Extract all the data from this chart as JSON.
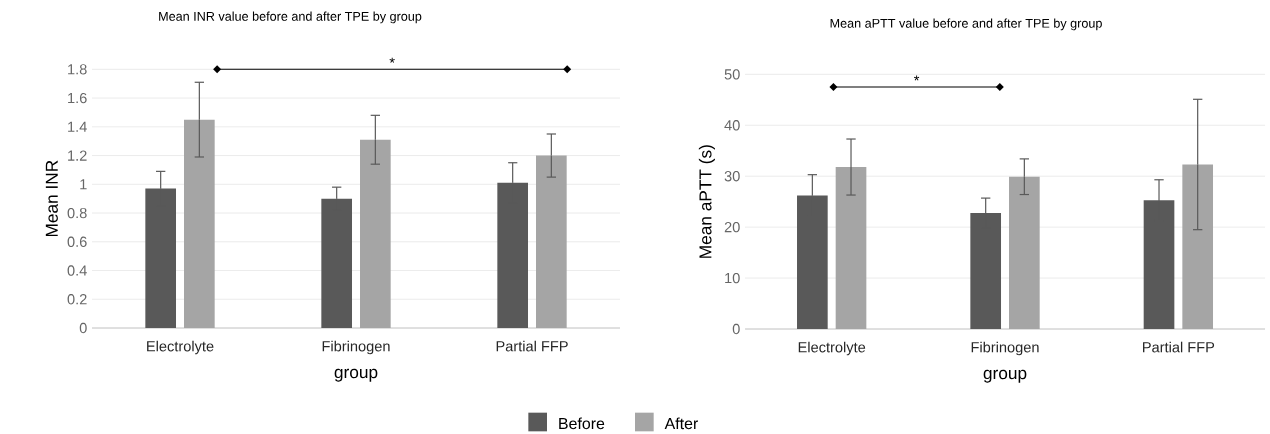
{
  "chart_data": [
    {
      "type": "bar",
      "title": "Mean INR value before and after TPE by group",
      "xlabel": "group",
      "ylabel": "Mean INR",
      "categories": [
        "Electrolyte",
        "Fibrinogen",
        "Partial FFP"
      ],
      "series": [
        {
          "name": "Before",
          "color": "#595959",
          "values": [
            0.97,
            0.9,
            1.01
          ],
          "errors": [
            0.12,
            0.08,
            0.14
          ]
        },
        {
          "name": "After",
          "color": "#a5a5a5",
          "values": [
            1.45,
            1.31,
            1.2
          ],
          "errors": [
            0.26,
            0.17,
            0.15
          ]
        }
      ],
      "ylim": [
        0,
        1.8
      ],
      "yticks": [
        0,
        0.2,
        0.4,
        0.6,
        0.8,
        1,
        1.2,
        1.4,
        1.6,
        1.8
      ],
      "grid": "y",
      "legend": "bottom",
      "annotations": [
        "*"
      ]
    },
    {
      "type": "bar",
      "title": "Mean aPTT value before and after TPE by group",
      "xlabel": "group",
      "ylabel": "Mean aPTT (s)",
      "categories": [
        "Electrolyte",
        "Fibrinogen",
        "Partial FFP"
      ],
      "series": [
        {
          "color": "#595959",
          "values": [
            26.2,
            22.8,
            25.3
          ],
          "errors": [
            4.1,
            2.9,
            4.0
          ]
        },
        {
          "color": "#a5a5a5",
          "values": [
            31.8,
            29.9,
            32.3
          ],
          "errors": [
            5.5,
            3.5,
            12.8
          ]
        }
      ],
      "ylim": [
        0,
        50
      ],
      "yticks": [
        0,
        10,
        20,
        30,
        40,
        50
      ],
      "grid": "y",
      "annotations": [
        "*"
      ]
    }
  ]
}
